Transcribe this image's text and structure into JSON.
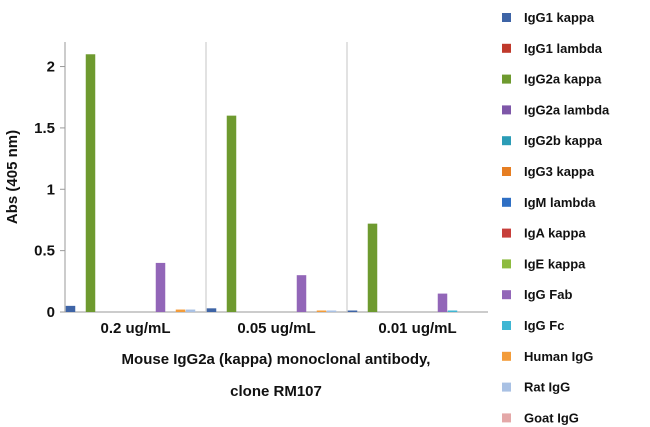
{
  "chart_data": {
    "type": "bar",
    "title": "",
    "xlabel": "Mouse IgG2a (kappa) monoclonal antibody,",
    "xlabel_line2": "clone RM107",
    "ylabel": "Abs (405 nm)",
    "ylim": [
      0,
      2.2
    ],
    "yticks": [
      "0",
      "0.5",
      "1",
      "1.5",
      "2"
    ],
    "ytick_values": [
      0,
      0.5,
      1,
      1.5,
      2
    ],
    "grid": "vertical separators between categories",
    "legend_position": "right",
    "categories": [
      "0.2 ug/mL",
      "0.05 ug/mL",
      "0.01 ug/mL"
    ],
    "series": [
      {
        "name": "IgG1 kappa",
        "color": "#3e64a6",
        "values": [
          0.05,
          0.03,
          0.01
        ]
      },
      {
        "name": "IgG1 lambda",
        "color": "#c0392b",
        "values": [
          0.0,
          0.0,
          0.0
        ]
      },
      {
        "name": "IgG2a kappa",
        "color": "#6e9a2f",
        "values": [
          2.1,
          1.6,
          0.72
        ]
      },
      {
        "name": "IgG2a lambda",
        "color": "#7e57a8",
        "values": [
          0.0,
          0.0,
          0.0
        ]
      },
      {
        "name": "IgG2b kappa",
        "color": "#2b9cb6",
        "values": [
          0.0,
          0.0,
          0.0
        ]
      },
      {
        "name": "IgG3 kappa",
        "color": "#e67e22",
        "values": [
          0.0,
          0.0,
          0.0
        ]
      },
      {
        "name": "IgM lambda",
        "color": "#2e6fc4",
        "values": [
          0.0,
          0.0,
          0.0
        ]
      },
      {
        "name": "IgA kappa",
        "color": "#c73e3a",
        "values": [
          0.0,
          0.0,
          0.0
        ]
      },
      {
        "name": "IgE kappa",
        "color": "#8dbb3f",
        "values": [
          0.0,
          0.0,
          0.0
        ]
      },
      {
        "name": "IgG Fab",
        "color": "#9266b8",
        "values": [
          0.4,
          0.3,
          0.15
        ]
      },
      {
        "name": "IgG Fc",
        "color": "#3fb6d3",
        "values": [
          0.0,
          0.0,
          0.01
        ]
      },
      {
        "name": "Human IgG",
        "color": "#f39c3a",
        "values": [
          0.02,
          0.01,
          0.0
        ]
      },
      {
        "name": "Rat IgG",
        "color": "#a9c1e4",
        "values": [
          0.02,
          0.01,
          0.0
        ]
      },
      {
        "name": "Goat IgG",
        "color": "#e4a8a8",
        "values": [
          0.0,
          0.0,
          0.0
        ]
      }
    ]
  }
}
